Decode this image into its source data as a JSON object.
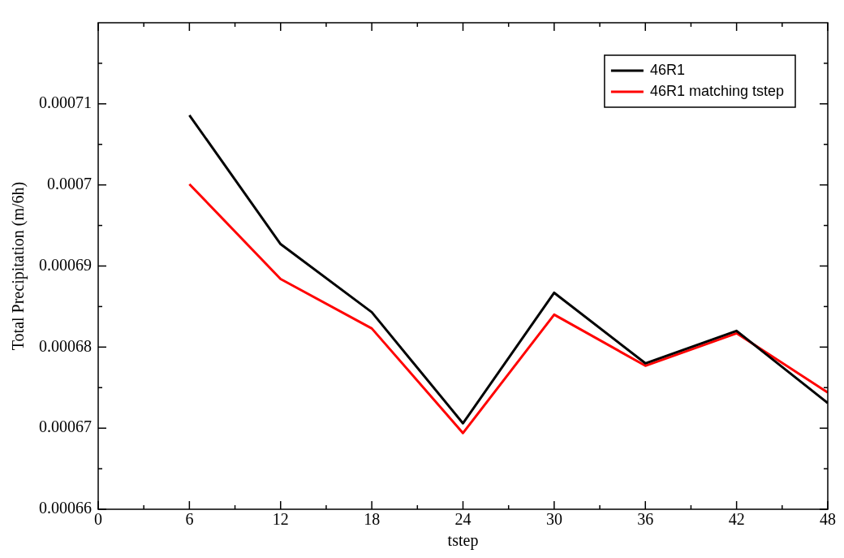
{
  "chart_data": {
    "type": "line",
    "xlabel": "tstep",
    "ylabel": "Total Precipitation (m/6h)",
    "x": [
      6,
      12,
      18,
      24,
      30,
      36,
      42,
      48
    ],
    "series": [
      {
        "name": "46R1",
        "color": "#000000",
        "values": [
          0.0007086,
          0.0006927,
          0.0006843,
          0.0006706,
          0.0006867,
          0.000678,
          0.000682,
          0.0006731
        ]
      },
      {
        "name": "46R1 matching tstep",
        "color": "#ff0000",
        "values": [
          0.0007001,
          0.0006884,
          0.0006823,
          0.0006694,
          0.000684,
          0.0006777,
          0.0006817,
          0.0006744
        ]
      }
    ],
    "xlim": [
      0,
      48
    ],
    "xticks": [
      0,
      6,
      12,
      18,
      24,
      30,
      36,
      42,
      48
    ],
    "ylim": [
      0.00066,
      0.00072
    ],
    "yticks": [
      0.00066,
      0.00067,
      0.00068,
      0.00069,
      0.0007,
      0.00071
    ],
    "legend": "top right",
    "marker": "none",
    "line_style": "solid"
  }
}
